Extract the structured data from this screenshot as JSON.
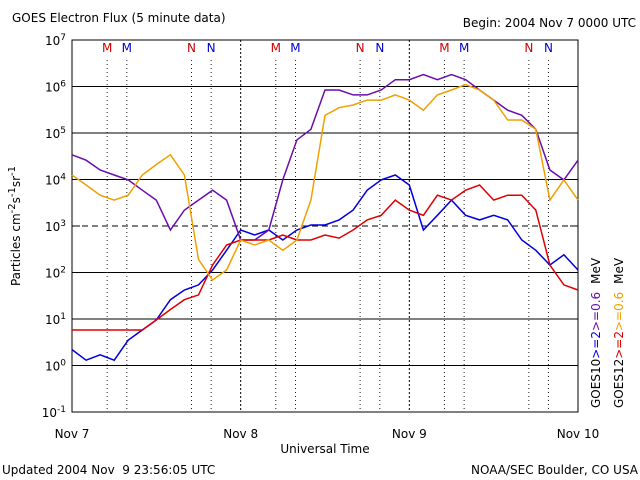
{
  "chart_data": {
    "type": "line",
    "title": "GOES Electron Flux (5 minute data)",
    "subtitle": "Begin: 2004 Nov 7 0000 UTC",
    "x_label": "Universal Time",
    "y_label_parts": [
      "Particles cm",
      "-2",
      "s",
      "-1",
      "sr",
      "-1"
    ],
    "footer_left": "Updated 2004 Nov  9 23:56:05 UTC",
    "footer_right": "NOAA/SEC Boulder, CO USA",
    "legend_unit": "MeV",
    "log_scale": true,
    "grid": true,
    "threshold_line": 1000,
    "xlim": [
      0,
      72
    ],
    "xticks": [
      {
        "value": 0,
        "label": "Nov 7"
      },
      {
        "value": 24,
        "label": "Nov 8"
      },
      {
        "value": 48,
        "label": "Nov 9"
      },
      {
        "value": 72,
        "label": "Nov 10"
      }
    ],
    "ylim": [
      0.1,
      10000000
    ],
    "yticks": [
      {
        "value": 0.1,
        "label": "10",
        "exp": "-1"
      },
      {
        "value": 1,
        "label": "10",
        "exp": "0"
      },
      {
        "value": 10,
        "label": "10",
        "exp": "1"
      },
      {
        "value": 100,
        "label": "10",
        "exp": "2"
      },
      {
        "value": 1000,
        "label": "10",
        "exp": "3"
      },
      {
        "value": 10000,
        "label": "10",
        "exp": "4"
      },
      {
        "value": 100000,
        "label": "10",
        "exp": "5"
      },
      {
        "value": 1000000,
        "label": "10",
        "exp": "6"
      },
      {
        "value": 10000000,
        "label": "10",
        "exp": "7"
      }
    ],
    "markers": [
      {
        "label": "M",
        "x": 5,
        "color": "#d00000"
      },
      {
        "label": "M",
        "x": 7.8,
        "color": "#0000d0"
      },
      {
        "label": "N",
        "x": 17,
        "color": "#d00000"
      },
      {
        "label": "N",
        "x": 19.8,
        "color": "#0000d0"
      },
      {
        "label": "M",
        "x": 29,
        "color": "#d00000"
      },
      {
        "label": "M",
        "x": 31.8,
        "color": "#0000d0"
      },
      {
        "label": "N",
        "x": 41,
        "color": "#d00000"
      },
      {
        "label": "N",
        "x": 43.8,
        "color": "#0000d0"
      },
      {
        "label": "M",
        "x": 53,
        "color": "#d00000"
      },
      {
        "label": "M",
        "x": 55.8,
        "color": "#0000d0"
      },
      {
        "label": "N",
        "x": 65,
        "color": "#d00000"
      },
      {
        "label": "N",
        "x": 67.8,
        "color": "#0000d0"
      }
    ],
    "x": [
      0,
      2,
      4,
      6,
      8,
      10,
      12,
      14,
      16,
      18,
      20,
      22,
      24,
      26,
      28,
      30,
      32,
      34,
      36,
      38,
      40,
      42,
      44,
      46,
      48,
      50,
      52,
      54,
      56,
      58,
      60,
      62,
      64,
      66,
      68,
      70,
      72
    ],
    "series": [
      {
        "satellite": "GOES10",
        "name": ">=2",
        "color": "#0000e0",
        "values": [
          2.2,
          1.3,
          1.7,
          1.3,
          3.5,
          5.8,
          9.5,
          26,
          42,
          54,
          113,
          300,
          820,
          640,
          820,
          500,
          820,
          1050,
          1050,
          1350,
          2200,
          5900,
          9800,
          12500,
          7600,
          820,
          1700,
          3600,
          1700,
          1350,
          1700,
          1350,
          500,
          300,
          145,
          240,
          113
        ]
      },
      {
        "satellite": "GOES10",
        "name": ">=0.6",
        "color": "#6a0dad",
        "values": [
          34000,
          26000,
          16000,
          12500,
          9800,
          5900,
          3600,
          820,
          2200,
          3600,
          5900,
          3600,
          500,
          500,
          820,
          9800,
          71000,
          120000,
          840000,
          840000,
          660000,
          660000,
          840000,
          1400000,
          1400000,
          1800000,
          1400000,
          1800000,
          1400000,
          840000,
          510000,
          310000,
          240000,
          120000,
          16000,
          9800,
          26000
        ]
      },
      {
        "satellite": "GOES12",
        "name": ">=2",
        "color": "#e00000",
        "values": [
          5.8,
          5.8,
          5.8,
          5.8,
          5.8,
          5.8,
          9.5,
          16,
          26,
          33,
          145,
          390,
          500,
          500,
          500,
          640,
          500,
          500,
          640,
          550,
          820,
          1350,
          1700,
          3600,
          2200,
          1700,
          4600,
          3600,
          5900,
          7600,
          3600,
          4600,
          4600,
          2200,
          145,
          54,
          42
        ]
      },
      {
        "satellite": "GOES12",
        "name": ">=0.6",
        "color": "#f0a000",
        "values": [
          12500,
          7600,
          4600,
          3600,
          4600,
          12500,
          21000,
          34000,
          12500,
          190,
          69,
          113,
          500,
          390,
          500,
          300,
          500,
          3600,
          240000,
          350000,
          400000,
          510000,
          510000,
          660000,
          510000,
          310000,
          660000,
          840000,
          1100000,
          840000,
          510000,
          190000,
          190000,
          120000,
          3600,
          9800,
          3600
        ]
      }
    ]
  }
}
